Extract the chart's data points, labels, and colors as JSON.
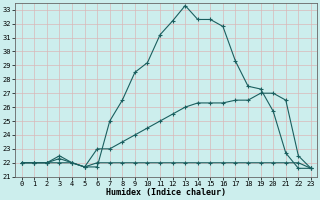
{
  "xlabel": "Humidex (Indice chaleur)",
  "xlim": [
    -0.5,
    23.5
  ],
  "ylim": [
    21,
    33.5
  ],
  "yticks": [
    21,
    22,
    23,
    24,
    25,
    26,
    27,
    28,
    29,
    30,
    31,
    32,
    33
  ],
  "xticks": [
    0,
    1,
    2,
    3,
    4,
    5,
    6,
    7,
    8,
    9,
    10,
    11,
    12,
    13,
    14,
    15,
    16,
    17,
    18,
    19,
    20,
    21,
    22,
    23
  ],
  "bg_color": "#cceeed",
  "grid_color": "#d9b8b8",
  "line_color": "#1a5f5f",
  "series1_x": [
    0,
    1,
    2,
    3,
    4,
    5,
    6,
    7,
    8,
    9,
    10,
    11,
    12,
    13,
    14,
    15,
    16,
    17,
    18,
    19,
    20,
    21,
    22,
    23
  ],
  "series1_y": [
    22.0,
    22.0,
    22.0,
    22.5,
    22.0,
    21.7,
    21.7,
    25.0,
    26.5,
    28.5,
    29.2,
    31.2,
    32.2,
    33.3,
    32.3,
    32.3,
    31.8,
    29.3,
    27.5,
    27.3,
    25.7,
    22.7,
    21.6,
    21.6
  ],
  "series2_x": [
    0,
    1,
    2,
    3,
    4,
    5,
    6,
    7,
    8,
    9,
    10,
    11,
    12,
    13,
    14,
    15,
    16,
    17,
    18,
    19,
    20,
    21,
    22,
    23
  ],
  "series2_y": [
    22.0,
    22.0,
    22.0,
    22.3,
    22.0,
    21.7,
    23.0,
    23.0,
    23.5,
    24.0,
    24.5,
    25.0,
    25.5,
    26.0,
    26.3,
    26.3,
    26.3,
    26.5,
    26.5,
    27.0,
    27.0,
    26.5,
    22.5,
    21.6
  ],
  "series3_x": [
    0,
    1,
    2,
    3,
    4,
    5,
    6,
    7,
    8,
    9,
    10,
    11,
    12,
    13,
    14,
    15,
    16,
    17,
    18,
    19,
    20,
    21,
    22,
    23
  ],
  "series3_y": [
    22.0,
    22.0,
    22.0,
    22.0,
    22.0,
    21.7,
    22.0,
    22.0,
    22.0,
    22.0,
    22.0,
    22.0,
    22.0,
    22.0,
    22.0,
    22.0,
    22.0,
    22.0,
    22.0,
    22.0,
    22.0,
    22.0,
    22.0,
    21.6
  ]
}
